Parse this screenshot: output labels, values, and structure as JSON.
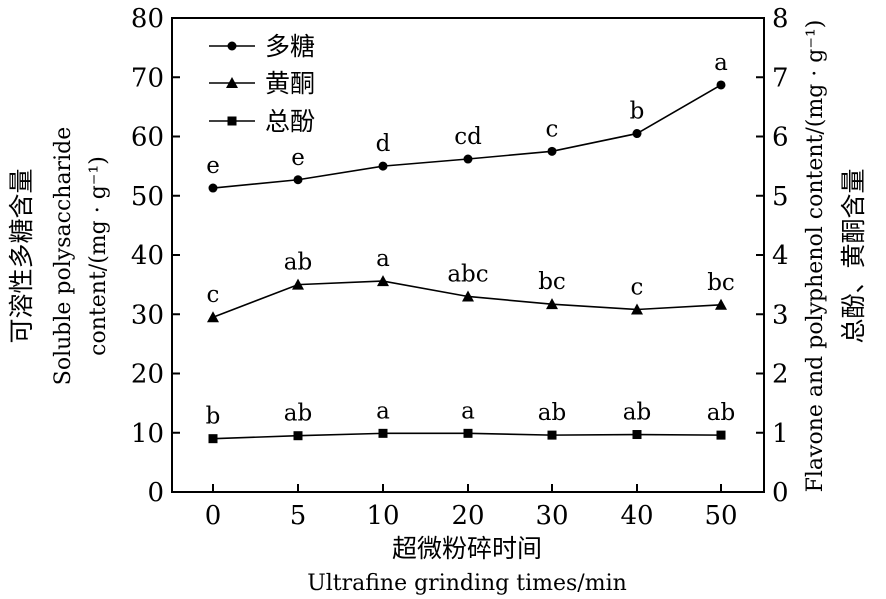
{
  "chart_data": {
    "type": "line",
    "x_categories": [
      "0",
      "5",
      "10",
      "20",
      "30",
      "40",
      "50"
    ],
    "xlabel_cn": "超微粉碎时间",
    "xlabel_en": "Ultrafine grinding times/min",
    "ylabel_left_cn": "可溶性多糖含量",
    "ylabel_left_en_1": "Soluble polysaccharide",
    "ylabel_left_en_2": "content/(mg · g⁻¹)",
    "ylabel_right_en": "Flavone and polyphenol content/(mg · g⁻¹)",
    "ylabel_right_cn": "总酚、黄酮含量",
    "ylim_left": [
      0,
      80
    ],
    "ylim_right": [
      0,
      8
    ],
    "y_ticks_left": [
      "0",
      "10",
      "20",
      "30",
      "40",
      "50",
      "60",
      "70",
      "80"
    ],
    "y_ticks_right": [
      "0",
      "1",
      "2",
      "3",
      "4",
      "5",
      "6",
      "7",
      "8"
    ],
    "grid": false,
    "legend_position": "top-left",
    "series": [
      {
        "name": "多糖",
        "axis": "left",
        "marker": "circle",
        "values": [
          51.3,
          52.7,
          55.0,
          56.2,
          57.5,
          60.5,
          68.7
        ],
        "labels": [
          "e",
          "e",
          "d",
          "cd",
          "c",
          "b",
          "a"
        ]
      },
      {
        "name": "黄酮",
        "axis": "right",
        "marker": "triangle",
        "values": [
          2.95,
          3.5,
          3.56,
          3.3,
          3.17,
          3.08,
          3.16
        ],
        "labels": [
          "c",
          "ab",
          "a",
          "abc",
          "bc",
          "c",
          "bc"
        ]
      },
      {
        "name": "总酚",
        "axis": "right",
        "marker": "square",
        "values": [
          0.9,
          0.95,
          0.99,
          0.99,
          0.96,
          0.97,
          0.96
        ],
        "labels": [
          "b",
          "ab",
          "a",
          "a",
          "ab",
          "ab",
          "ab"
        ]
      }
    ]
  }
}
